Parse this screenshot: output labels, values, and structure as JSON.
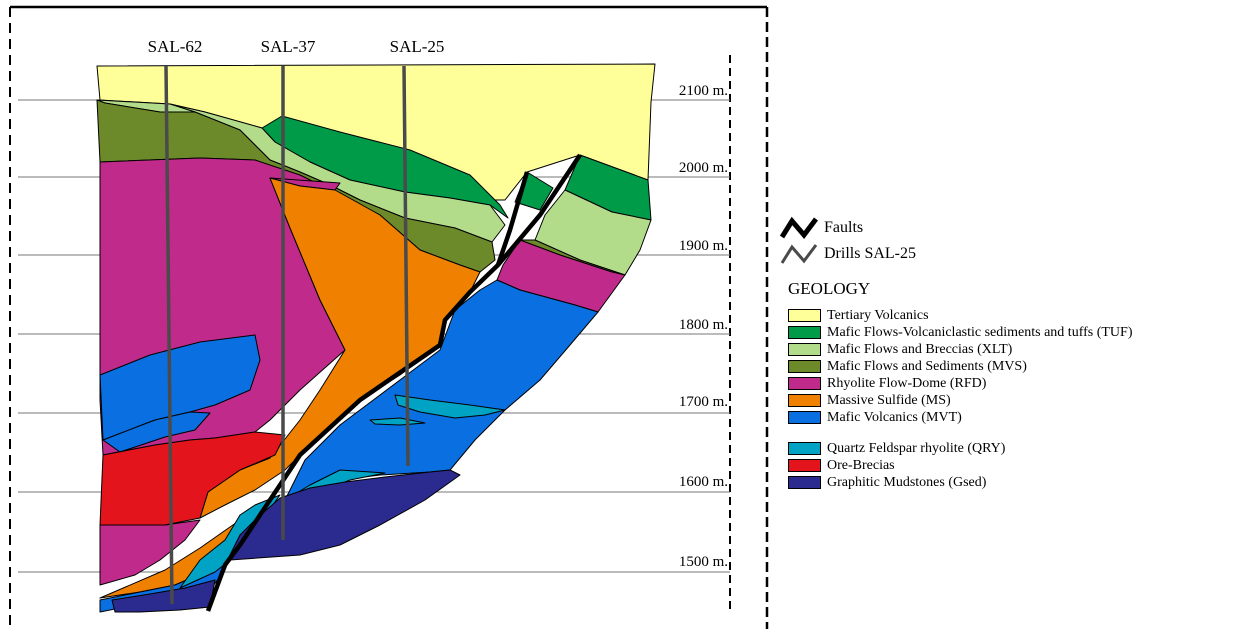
{
  "drills": [
    {
      "id": "SAL-62"
    },
    {
      "id": "SAL-37"
    },
    {
      "id": "SAL-25"
    }
  ],
  "elevation_labels": [
    "2100 m.",
    "2000 m.",
    "1900 m.",
    "1800 m.",
    "1700 m.",
    "1600 m.",
    "1500 m."
  ],
  "legend": {
    "faults_label": "Faults",
    "drills_label": "Drills  SAL-25",
    "geology_title": "GEOLOGY",
    "units": [
      {
        "label": "Tertiary Volcanics",
        "color": "#ffff99"
      },
      {
        "label": "Mafic Flows-Volcaniclastic sediments and tuffs (TUF)",
        "color": "#009b48"
      },
      {
        "label": "Mafic Flows and Breccias  (XLT)",
        "color": "#b3dc8a"
      },
      {
        "label": "Mafic Flows and Sediments (MVS)",
        "color": "#6d8a2b"
      },
      {
        "label": "Rhyolite Flow-Dome (RFD)",
        "color": "#c02a8a"
      },
      {
        "label": "Massive Sulfide (MS)",
        "color": "#f08000"
      },
      {
        "label": "Mafic Volcanics (MVT)",
        "color": "#0a6fe0"
      }
    ],
    "units_extra": [
      {
        "label": "Quartz Feldspar rhyolite (QRY)",
        "color": "#00a3c4"
      },
      {
        "label": "Ore-Brecias",
        "color": "#e3141b"
      },
      {
        "label": "Graphitic Mudstones (Gsed)",
        "color": "#2b2a8e"
      }
    ]
  },
  "colors": {
    "tertiary": "#ffff99",
    "tuf": "#009b48",
    "xlt": "#b3dc8a",
    "mvs": "#6d8a2b",
    "rfd": "#c02a8a",
    "ms": "#f08000",
    "mvt": "#0a6fe0",
    "qry": "#00a3c4",
    "ore": "#e3141b",
    "gsed": "#2b2a8e",
    "drill": "#4a4a4a",
    "fault": "#000000"
  }
}
